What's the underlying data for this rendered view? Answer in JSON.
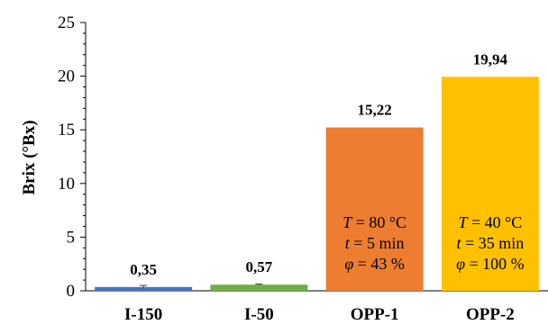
{
  "chart_data": {
    "type": "bar",
    "ylabel": "Brix (°Bx)",
    "xlabel": "",
    "title": "",
    "ylim": [
      0,
      25
    ],
    "y_ticks": [
      "0",
      "5",
      "10",
      "15",
      "20",
      "25"
    ],
    "categories": [
      "I-150",
      "I-50",
      "OPP-1",
      "OPP-2"
    ],
    "values": [
      0.35,
      0.57,
      15.22,
      19.94
    ],
    "value_labels": [
      "0,35",
      "0,57",
      "15,22",
      "19,94"
    ],
    "error": [
      0.15,
      0.06,
      0,
      0
    ],
    "colors": [
      "#4472C4",
      "#70AD47",
      "#ED7D31",
      "#FFC000"
    ],
    "grid": false,
    "annotations": [
      {
        "category": "OPP-1",
        "lines": [
          {
            "symbol": "T",
            "text": " = 80 °C"
          },
          {
            "symbol": "t",
            "text": " = 5 min"
          },
          {
            "symbol": "φ",
            "text": "  = 43 %"
          }
        ]
      },
      {
        "category": "OPP-2",
        "lines": [
          {
            "symbol": "T",
            "text": " = 40 °C"
          },
          {
            "symbol": "t",
            "text": " = 35 min"
          },
          {
            "symbol": "φ",
            "text": "  = 100 %"
          }
        ]
      }
    ]
  }
}
